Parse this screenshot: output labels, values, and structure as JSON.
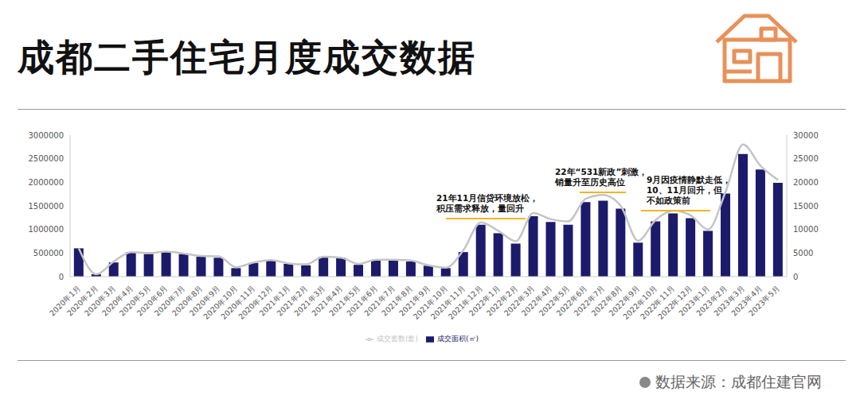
{
  "chart_data": {
    "type": "bar",
    "title": "成都二手住宅月度成交数据",
    "source": "数据来源：成都住建官网",
    "categories": [
      "2020年1月",
      "2020年2月",
      "2020年3月",
      "2020年4月",
      "2020年5月",
      "2020年6月",
      "2020年7月",
      "2020年8月",
      "2020年9月",
      "2020年10月",
      "2020年11月",
      "2020年12月",
      "2021年1月",
      "2021年2月",
      "2021年3月",
      "2021年4月",
      "2021年5月",
      "2021年6月",
      "2021年7月",
      "2021年8月",
      "2021年9月",
      "2021年10月",
      "2021年11月",
      "2021年12月",
      "2022年1月",
      "2022年2月",
      "2022年3月",
      "2022年4月",
      "2022年5月",
      "2022年6月",
      "2022年7月",
      "2022年8月",
      "2022年9月",
      "2022年10月",
      "2022年11月",
      "2022年12月",
      "2023年1月",
      "2023年2月",
      "2023年3月",
      "2023年4月",
      "2023年5月"
    ],
    "series": [
      {
        "name": "成交面积(㎡)",
        "type": "bar",
        "color": "#1b1a6b",
        "values": [
          600000,
          50000,
          300000,
          520000,
          480000,
          520000,
          480000,
          420000,
          400000,
          180000,
          290000,
          350000,
          270000,
          240000,
          420000,
          400000,
          250000,
          350000,
          340000,
          320000,
          230000,
          180000,
          520000,
          1100000,
          920000,
          700000,
          1280000,
          1160000,
          1100000,
          1580000,
          1610000,
          1440000,
          720000,
          1170000,
          1340000,
          1240000,
          970000,
          1760000,
          2600000,
          2270000,
          1990000
        ]
      },
      {
        "name": "成交套数(套)",
        "type": "line",
        "axis": "y2",
        "color": "#c4c4c4",
        "marker": "none",
        "values": [
          6000,
          500,
          3200,
          5200,
          5000,
          5300,
          4900,
          4400,
          4300,
          2000,
          3000,
          3500,
          2800,
          2600,
          4200,
          4000,
          2700,
          3600,
          3600,
          3400,
          2400,
          1900,
          5600,
          11500,
          9700,
          7500,
          13500,
          12200,
          11700,
          16500,
          17300,
          15000,
          7600,
          12000,
          14000,
          13000,
          10000,
          18000,
          28000,
          23500,
          20500
        ]
      }
    ],
    "ylim": [
      0,
      3000000
    ],
    "yticks": [
      0,
      500000,
      1000000,
      1500000,
      2000000,
      2500000,
      3000000
    ],
    "y2lim": [
      0,
      30000
    ],
    "y2ticks": [
      0,
      5000,
      10000,
      15000,
      20000,
      25000,
      30000
    ],
    "grid": false,
    "legend": "bottom",
    "annotations": [
      [
        "21年11月信贷环境放松，",
        "积压需求释放，量回升"
      ],
      [
        "22年“531新政”刺激，",
        "销量升至历史高位"
      ],
      [
        "9月因疫情静默走低，",
        "10、11月回升，但",
        "不如政策前"
      ]
    ]
  }
}
